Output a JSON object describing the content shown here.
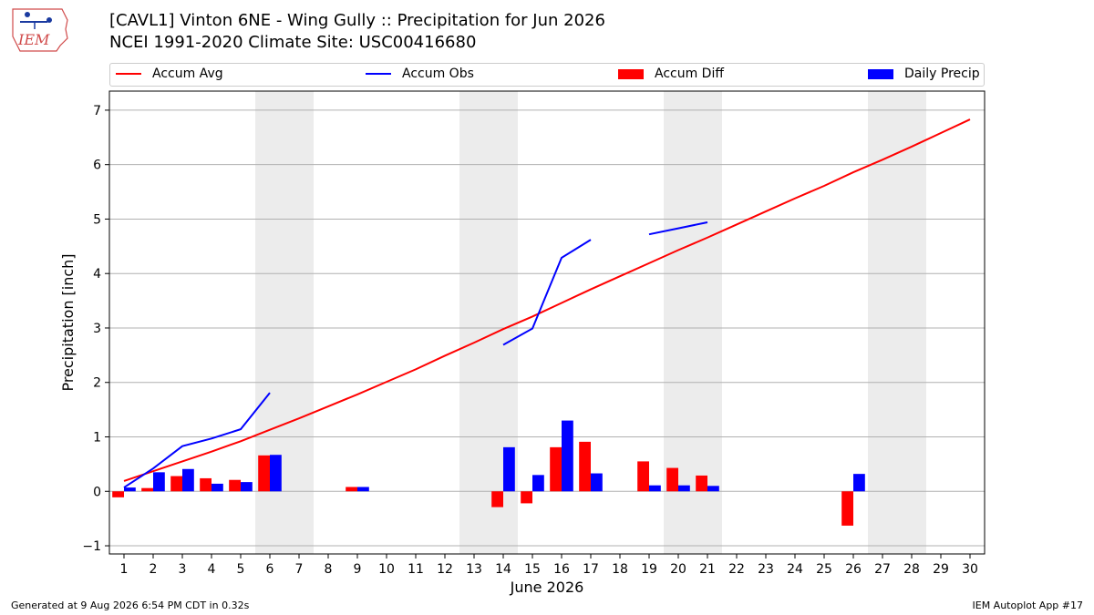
{
  "header": {
    "title_line1": "[CAVL1] Vinton 6NE - Wing Gully :: Precipitation for Jun 2026",
    "title_line2": "NCEI 1991-2020 Climate Site: USC00416680",
    "logo_text": "IEM"
  },
  "legend": {
    "accum_avg": "Accum Avg",
    "accum_obs": "Accum Obs",
    "accum_diff": "Accum Diff",
    "daily_precip": "Daily Precip"
  },
  "footer": {
    "generated": "Generated at 9 Aug 2026 6:54 PM CDT in 0.32s",
    "app": "IEM Autoplot App #17"
  },
  "colors": {
    "avg": "#ff0000",
    "obs": "#0000ff",
    "diff": "#ff0000",
    "daily": "#0000ff",
    "weekend": "#ececec",
    "grid": "#b0b0b0"
  },
  "chart_data": {
    "type": "bar",
    "xlabel": "June 2026",
    "ylabel": "Precipitation [inch]",
    "xlim": [
      0.5,
      30.5
    ],
    "ylim": [
      -1.15,
      7.35
    ],
    "yticks": [
      -1,
      0,
      1,
      2,
      3,
      4,
      5,
      6,
      7
    ],
    "days": [
      1,
      2,
      3,
      4,
      5,
      6,
      7,
      8,
      9,
      10,
      11,
      12,
      13,
      14,
      15,
      16,
      17,
      18,
      19,
      20,
      21,
      22,
      23,
      24,
      25,
      26,
      27,
      28,
      29,
      30
    ],
    "weekend_shading": [
      [
        6,
        7
      ],
      [
        13,
        14
      ],
      [
        20,
        21
      ],
      [
        27,
        28
      ]
    ],
    "grid": "y",
    "legend_position": "top",
    "series": [
      {
        "name": "Accum Avg",
        "kind": "line",
        "values": [
          0.19,
          0.37,
          0.55,
          0.73,
          0.92,
          1.13,
          1.34,
          1.56,
          1.78,
          2.01,
          2.24,
          2.49,
          2.73,
          2.98,
          3.21,
          3.46,
          3.71,
          3.95,
          4.19,
          4.43,
          4.66,
          4.9,
          5.14,
          5.38,
          5.61,
          5.86,
          6.09,
          6.33,
          6.58,
          6.83
        ]
      },
      {
        "name": "Accum Obs",
        "kind": "line",
        "values": [
          0.07,
          0.42,
          0.83,
          0.97,
          1.14,
          1.81,
          null,
          null,
          null,
          null,
          null,
          null,
          null,
          2.69,
          2.99,
          4.29,
          4.62,
          null,
          4.72,
          4.83,
          4.94,
          null,
          null,
          null,
          null,
          null,
          null,
          null,
          null,
          null
        ]
      },
      {
        "name": "Accum Diff",
        "kind": "bar",
        "values": [
          -0.11,
          0.06,
          0.28,
          0.24,
          0.21,
          0.66,
          0,
          0,
          0.08,
          0,
          0,
          0,
          0,
          -0.29,
          -0.22,
          0.81,
          0.91,
          0,
          0.55,
          0.43,
          0.29,
          0,
          0,
          0,
          0,
          -0.63,
          0,
          0,
          0,
          0
        ]
      },
      {
        "name": "Daily Precip",
        "kind": "bar",
        "values": [
          0.07,
          0.35,
          0.41,
          0.14,
          0.17,
          0.67,
          0,
          0,
          0.08,
          0,
          0,
          0,
          0,
          0.81,
          0.3,
          1.3,
          0.33,
          0,
          0.11,
          0.11,
          0.1,
          0,
          0,
          0,
          0,
          0.32,
          0,
          0,
          0,
          0
        ]
      }
    ]
  }
}
